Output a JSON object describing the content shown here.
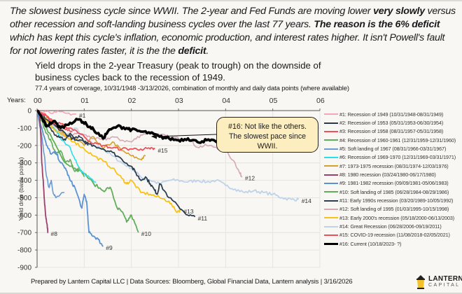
{
  "headline": {
    "parts": [
      {
        "text": "The slowest business cycle since WWII. The 2-year and Fed Funds are moving lower ",
        "bold": false
      },
      {
        "text": "very slowly",
        "bold": true
      },
      {
        "text": " versus other recession and soft-landing business cycles over the last 77 years. ",
        "bold": false
      },
      {
        "text": "The reason is the 6% deficit",
        "bold": true
      },
      {
        "text": " which has kept this cycle's inflation, economic production, and interest rates higher. It isn't Powell's fault for not lowering rates faster, it is the the ",
        "bold": false
      },
      {
        "text": "deficit",
        "bold": true
      },
      {
        "text": ".",
        "bold": false
      }
    ]
  },
  "callout": {
    "text_line1": "#16: Not like the others.",
    "text_line2": "The slowest pace since",
    "text_line3": "WWII."
  },
  "footer": {
    "text": "Prepared by Lantern Capital LLC | Data Sources: Bloomberg, Global Financial Data, Lantern analysis | 3/16/2026"
  },
  "logo": {
    "line1": "LANTERN",
    "line2": "CAPITAL",
    "color": "#f2c12e"
  },
  "chart_data": {
    "type": "line",
    "title": "Yield drops in the 2-year Treasury (peak to trough) on the downside of business cycles back to the recession of 1949.",
    "subtitle": "77.4 years of coverage, 10/31/1948 -3/13/2026, combination of monthly and daily data points (where available)",
    "xlabel": "Years:",
    "ylabel": "Yield drop (basis points)",
    "xlim": [
      0,
      6
    ],
    "ylim": [
      -900,
      0
    ],
    "x_ticks": [
      "00",
      "01",
      "02",
      "03",
      "04",
      "05",
      "06"
    ],
    "y_ticks": [
      0,
      -100,
      -200,
      -300,
      -400,
      -500,
      -600,
      -700,
      -800,
      -900
    ],
    "grid": true,
    "legend_position": "right",
    "series": [
      {
        "name": "#1: Recession of 1949 (10/31/1948-08/31/1949)",
        "label": "#1",
        "color": "#f4a6b8",
        "width": 1.6,
        "points": [
          [
            0,
            0
          ],
          [
            0.2,
            -5
          ],
          [
            0.4,
            -10
          ],
          [
            0.6,
            -15
          ],
          [
            0.83,
            -20
          ]
        ]
      },
      {
        "name": "#2: Recession of 1953 (05/31/1953-06/30/1954)",
        "label": "",
        "color": "#2b3a4a",
        "width": 1.6,
        "points": [
          [
            0,
            0
          ],
          [
            0.1,
            -40
          ],
          [
            0.2,
            -80
          ],
          [
            0.3,
            -110
          ],
          [
            0.4,
            -140
          ],
          [
            0.5,
            -150
          ],
          [
            0.6,
            -170
          ],
          [
            0.7,
            -130
          ],
          [
            0.8,
            -160
          ],
          [
            0.9,
            -150
          ],
          [
            1.08,
            -200
          ]
        ]
      },
      {
        "name": "#3: Recession of 1958 (08/31/1957-05/31/1958)",
        "label": "",
        "color": "#f0505a",
        "width": 1.6,
        "points": [
          [
            0,
            0
          ],
          [
            0.1,
            -20
          ],
          [
            0.2,
            -30
          ],
          [
            0.3,
            -60
          ],
          [
            0.4,
            -75
          ],
          [
            0.5,
            -90
          ],
          [
            0.6,
            -110
          ],
          [
            0.75,
            -120
          ]
        ]
      },
      {
        "name": "#4: Recession of 1960-1961 (12/31/1959-12/31/1960)",
        "label": "",
        "color": "#5fae5a",
        "width": 1.6,
        "points": [
          [
            0,
            0
          ],
          [
            0.1,
            -60
          ],
          [
            0.2,
            -130
          ],
          [
            0.3,
            -180
          ],
          [
            0.4,
            -250
          ],
          [
            0.5,
            -230
          ],
          [
            0.6,
            -300
          ],
          [
            0.7,
            -280
          ],
          [
            0.8,
            -350
          ],
          [
            0.9,
            -330
          ],
          [
            1.0,
            -380
          ]
        ]
      },
      {
        "name": "#5: Soft landing of 1967 (08/31/1966-03/31/1967)",
        "label": "",
        "color": "#6b9bd2",
        "width": 1.6,
        "points": [
          [
            0,
            0
          ],
          [
            0.05,
            -80
          ],
          [
            0.1,
            -150
          ],
          [
            0.15,
            -250
          ],
          [
            0.2,
            -380
          ],
          [
            0.25,
            -440
          ],
          [
            0.3,
            -400
          ],
          [
            0.35,
            -480
          ],
          [
            0.4,
            -500
          ],
          [
            0.58,
            -470
          ]
        ]
      },
      {
        "name": "#6: Recession of 1969-1970 (12/31/1969-03/31/1971)",
        "label": "",
        "color": "#26e0ee",
        "width": 1.6,
        "points": [
          [
            0,
            0
          ],
          [
            0.1,
            -30
          ],
          [
            0.2,
            -60
          ],
          [
            0.3,
            -90
          ],
          [
            0.4,
            -110
          ],
          [
            0.5,
            -160
          ],
          [
            0.6,
            -190
          ],
          [
            0.7,
            -210
          ],
          [
            0.8,
            -280
          ],
          [
            0.9,
            -330
          ],
          [
            1.0,
            -360
          ],
          [
            1.25,
            -410
          ]
        ]
      },
      {
        "name": "#7: 1973-1975 recession (08/31/1974-12/03/1976)",
        "label": "",
        "color": "#d4a12a",
        "width": 1.6,
        "points": [
          [
            0,
            0
          ],
          [
            0.2,
            -40
          ],
          [
            0.4,
            -90
          ],
          [
            0.6,
            -140
          ],
          [
            0.8,
            -160
          ],
          [
            1.0,
            -200
          ],
          [
            1.2,
            -150
          ],
          [
            1.4,
            -220
          ],
          [
            1.6,
            -180
          ],
          [
            1.8,
            -230
          ],
          [
            2.0,
            -260
          ],
          [
            2.2,
            -280
          ],
          [
            2.3,
            -260
          ]
        ]
      },
      {
        "name": "#8: 1980 recession (03/24/1980-06/17/1980)",
        "label": "#8",
        "color": "#9b3f6b",
        "width": 1.8,
        "points": [
          [
            0.05,
            0
          ],
          [
            0.08,
            -150
          ],
          [
            0.1,
            -300
          ],
          [
            0.13,
            -400
          ],
          [
            0.15,
            -500
          ],
          [
            0.18,
            -600
          ],
          [
            0.21,
            -650
          ],
          [
            0.23,
            -700
          ]
        ]
      },
      {
        "name": "#9: 1981-1982 recession (09/09/1981-05/06/1983)",
        "label": "#9",
        "color": "#5b92d4",
        "width": 1.8,
        "points": [
          [
            0,
            0
          ],
          [
            0.1,
            -100
          ],
          [
            0.2,
            -200
          ],
          [
            0.3,
            -250
          ],
          [
            0.4,
            -240
          ],
          [
            0.5,
            -300
          ],
          [
            0.6,
            -330
          ],
          [
            0.7,
            -400
          ],
          [
            0.8,
            -440
          ],
          [
            0.95,
            -560
          ],
          [
            1.0,
            -480
          ],
          [
            1.05,
            -520
          ],
          [
            1.1,
            -700
          ],
          [
            1.2,
            -720
          ],
          [
            1.3,
            -740
          ],
          [
            1.4,
            -780
          ]
        ]
      },
      {
        "name": "#10: Soft landing of 1985 (06/28/1984-08/29/1986)",
        "label": "#10",
        "color": "#5fae5a",
        "width": 1.8,
        "points": [
          [
            0,
            0
          ],
          [
            0.2,
            -100
          ],
          [
            0.4,
            -200
          ],
          [
            0.6,
            -300
          ],
          [
            0.8,
            -330
          ],
          [
            1.0,
            -360
          ],
          [
            1.2,
            -420
          ],
          [
            1.4,
            -460
          ],
          [
            1.55,
            -440
          ],
          [
            1.7,
            -560
          ],
          [
            1.8,
            -580
          ],
          [
            1.9,
            -640
          ],
          [
            2.0,
            -600
          ],
          [
            2.15,
            -700
          ]
        ]
      },
      {
        "name": "#11: Early 1990s recession (03/20/1989-10/05/1992)",
        "label": "#11",
        "color": "#2b3d4f",
        "width": 1.8,
        "points": [
          [
            0,
            0
          ],
          [
            0.2,
            -50
          ],
          [
            0.4,
            -90
          ],
          [
            0.6,
            -130
          ],
          [
            0.8,
            -170
          ],
          [
            1.0,
            -180
          ],
          [
            1.2,
            -200
          ],
          [
            1.4,
            -220
          ],
          [
            1.6,
            -240
          ],
          [
            1.8,
            -280
          ],
          [
            2.0,
            -320
          ],
          [
            2.1,
            -360
          ],
          [
            2.2,
            -400
          ],
          [
            2.3,
            -380
          ],
          [
            2.4,
            -420
          ],
          [
            2.5,
            -460
          ],
          [
            2.55,
            -480
          ],
          [
            2.6,
            -420
          ],
          [
            2.8,
            -500
          ],
          [
            3.0,
            -550
          ],
          [
            3.2,
            -600
          ],
          [
            3.35,
            -610
          ]
        ]
      },
      {
        "name": "#12: Soft landing of 1995 (01/03/1995-10/15/1998)",
        "label": "#12",
        "color": "#d4a8b8",
        "width": 1.6,
        "points": [
          [
            0,
            0
          ],
          [
            0.3,
            -80
          ],
          [
            0.6,
            -150
          ],
          [
            0.8,
            -130
          ],
          [
            1.0,
            -140
          ],
          [
            1.2,
            -160
          ],
          [
            1.4,
            -170
          ],
          [
            1.6,
            -150
          ],
          [
            1.8,
            -170
          ],
          [
            2.0,
            -180
          ],
          [
            2.2,
            -140
          ],
          [
            2.4,
            -120
          ],
          [
            2.6,
            -140
          ],
          [
            2.8,
            -150
          ],
          [
            3.0,
            -160
          ],
          [
            3.2,
            -160
          ],
          [
            3.4,
            -210
          ],
          [
            3.6,
            -200
          ],
          [
            3.8,
            -210
          ],
          [
            4.0,
            -230
          ],
          [
            4.2,
            -300
          ],
          [
            4.3,
            -360
          ],
          [
            4.35,
            -380
          ]
        ]
      },
      {
        "name": "#13: Early 2000's recession (05/18/2000-06/13/2003)",
        "label": "#13",
        "color": "#f9c218",
        "width": 1.8,
        "points": [
          [
            0,
            0
          ],
          [
            0.2,
            -60
          ],
          [
            0.4,
            -120
          ],
          [
            0.6,
            -150
          ],
          [
            0.8,
            -180
          ],
          [
            1.0,
            -220
          ],
          [
            1.2,
            -260
          ],
          [
            1.4,
            -290
          ],
          [
            1.6,
            -330
          ],
          [
            1.8,
            -390
          ],
          [
            1.9,
            -420
          ],
          [
            2.0,
            -400
          ],
          [
            2.2,
            -470
          ],
          [
            2.4,
            -480
          ],
          [
            2.6,
            -500
          ],
          [
            2.8,
            -520
          ],
          [
            2.95,
            -580
          ],
          [
            3.05,
            -570
          ]
        ]
      },
      {
        "name": "#14: Great Recession (06/28/2006-09/19/2011)",
        "label": "#14",
        "color": "#bdd3ea",
        "width": 1.8,
        "points": [
          [
            0,
            0
          ],
          [
            0.2,
            -60
          ],
          [
            0.4,
            -120
          ],
          [
            0.6,
            -150
          ],
          [
            0.8,
            -100
          ],
          [
            1.0,
            -150
          ],
          [
            1.2,
            -200
          ],
          [
            1.4,
            -220
          ],
          [
            1.6,
            -260
          ],
          [
            1.8,
            -300
          ],
          [
            2.0,
            -330
          ],
          [
            2.2,
            -380
          ],
          [
            2.4,
            -400
          ],
          [
            2.6,
            -420
          ],
          [
            2.8,
            -400
          ],
          [
            3.0,
            -400
          ],
          [
            3.2,
            -410
          ],
          [
            3.4,
            -400
          ],
          [
            3.6,
            -410
          ],
          [
            3.8,
            -400
          ],
          [
            4.0,
            -430
          ],
          [
            4.2,
            -450
          ],
          [
            4.4,
            -470
          ],
          [
            4.6,
            -460
          ],
          [
            4.8,
            -470
          ],
          [
            5.0,
            -480
          ],
          [
            5.2,
            -500
          ],
          [
            5.4,
            -510
          ],
          [
            5.55,
            -510
          ]
        ]
      },
      {
        "name": "#15: COVID-19 recession (11/08/2018-02/05/2021)",
        "label": "#15",
        "color": "#f0505a",
        "width": 1.8,
        "points": [
          [
            0,
            0
          ],
          [
            0.2,
            -30
          ],
          [
            0.4,
            -70
          ],
          [
            0.6,
            -90
          ],
          [
            0.8,
            -110
          ],
          [
            1.0,
            -150
          ],
          [
            1.2,
            -190
          ],
          [
            1.4,
            -200
          ],
          [
            1.6,
            -215
          ],
          [
            1.8,
            -220
          ],
          [
            2.0,
            -220
          ],
          [
            2.2,
            -220
          ],
          [
            2.4,
            -220
          ],
          [
            2.5,
            -220
          ]
        ]
      },
      {
        "name": "#16: Current (10/18/2023- ?)",
        "label": "",
        "color": "#000000",
        "width": 3.6,
        "points": [
          [
            0,
            0
          ],
          [
            0.1,
            -40
          ],
          [
            0.2,
            -90
          ],
          [
            0.35,
            -60
          ],
          [
            0.5,
            -100
          ],
          [
            0.7,
            -70
          ],
          [
            0.9,
            -50
          ],
          [
            1.05,
            -80
          ],
          [
            1.2,
            -110
          ],
          [
            1.4,
            -160
          ],
          [
            1.5,
            -120
          ],
          [
            1.7,
            -90
          ],
          [
            1.9,
            -100
          ],
          [
            2.0,
            -110
          ],
          [
            2.2,
            -120
          ],
          [
            2.4,
            -130
          ],
          [
            2.6,
            -150
          ],
          [
            2.8,
            -160
          ],
          [
            3.0,
            -170
          ],
          [
            3.2,
            -160
          ],
          [
            3.4,
            -180
          ],
          [
            3.6,
            -170
          ],
          [
            3.8,
            -180
          ],
          [
            4.0,
            -160
          ],
          [
            4.2,
            -160
          ]
        ]
      }
    ]
  }
}
